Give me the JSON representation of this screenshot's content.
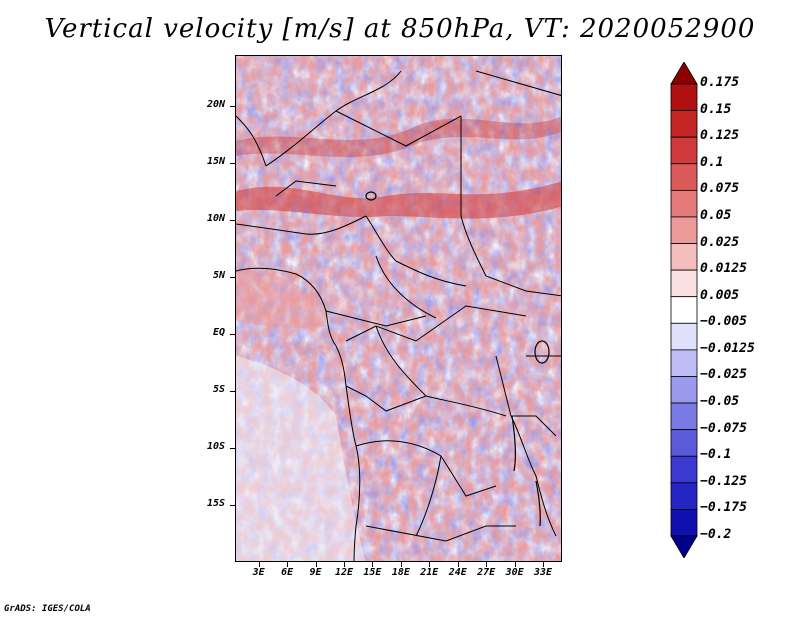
{
  "title": "Vertical velocity [m/s] at 850hPa, VT: 2020052900",
  "map": {
    "lat_labels": [
      "20N",
      "15N",
      "10N",
      "5N",
      "EQ",
      "5S",
      "10S",
      "15S"
    ],
    "lat_values": [
      20,
      15,
      10,
      5,
      0,
      -5,
      -10,
      -15
    ],
    "lon_labels": [
      "3E",
      "6E",
      "9E",
      "12E",
      "15E",
      "18E",
      "21E",
      "24E",
      "27E",
      "30E",
      "33E"
    ],
    "lon_values": [
      3,
      6,
      9,
      12,
      15,
      18,
      21,
      24,
      27,
      30,
      33
    ],
    "lon_range": [
      0.5,
      35
    ],
    "lat_range": [
      -20,
      24.5
    ]
  },
  "colorbar": {
    "labels": [
      "0.175",
      "0.15",
      "0.125",
      "0.1",
      "0.075",
      "0.05",
      "0.025",
      "0.0125",
      "0.005",
      "−0.005",
      "−0.0125",
      "−0.025",
      "−0.05",
      "−0.075",
      "−0.1",
      "−0.125",
      "−0.175",
      "−0.2"
    ],
    "colors": [
      "#8c0000",
      "#b01010",
      "#c42525",
      "#d03a3a",
      "#da5a5a",
      "#e47a7a",
      "#ec9a9a",
      "#f4bebe",
      "#fae0e0",
      "#ffffff",
      "#e0e0fa",
      "#bebef4",
      "#9a9aec",
      "#7a7ae4",
      "#5a5ada",
      "#3a3ad0",
      "#2525c4",
      "#1010b0",
      "#00008c"
    ]
  },
  "credit": "GrADS: IGES/COLA"
}
